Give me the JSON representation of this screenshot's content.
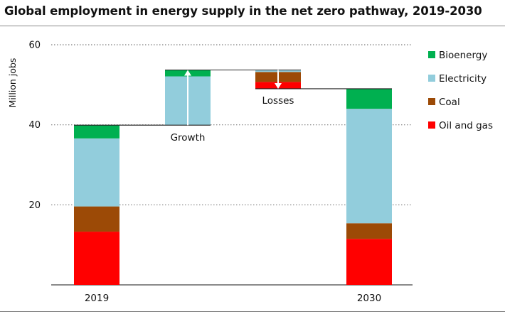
{
  "chart_data": {
    "type": "waterfall-stacked-bar",
    "title": "Global employment in energy supply in the net zero pathway, 2019-2030",
    "ylabel": "Million jobs",
    "ylim": [
      0,
      60
    ],
    "yticks": [
      20,
      40,
      60
    ],
    "grid": true,
    "legend_position": "right",
    "series_names": [
      "Oil and gas",
      "Coal",
      "Electricity",
      "Bioenergy"
    ],
    "colors": {
      "Oil and gas": "#ff0000",
      "Coal": "#9c4a06",
      "Electricity": "#92cddc",
      "Bioenergy": "#00b050"
    },
    "categories": [
      "2019",
      "Growth",
      "Losses",
      "2030"
    ],
    "bars": [
      {
        "category": "2019",
        "kind": "total",
        "segments": [
          {
            "series": "Oil and gas",
            "from": 0,
            "to": 13.3
          },
          {
            "series": "Coal",
            "from": 13.3,
            "to": 19.6
          },
          {
            "series": "Electricity",
            "from": 19.6,
            "to": 36.6
          },
          {
            "series": "Bioenergy",
            "from": 36.6,
            "to": 39.9
          }
        ]
      },
      {
        "category": "Growth",
        "kind": "increase",
        "segments": [
          {
            "series": "Electricity",
            "from": 39.9,
            "to": 52.1
          },
          {
            "series": "Bioenergy",
            "from": 52.1,
            "to": 53.7
          }
        ]
      },
      {
        "category": "Losses",
        "kind": "decrease",
        "segments": [
          {
            "series": "Oil and gas",
            "from": 49.0,
            "to": 50.7
          },
          {
            "series": "Coal",
            "from": 50.7,
            "to": 53.2
          },
          {
            "series": "Electricity",
            "from": 53.2,
            "to": 53.7
          }
        ]
      },
      {
        "category": "2030",
        "kind": "total",
        "segments": [
          {
            "series": "Oil and gas",
            "from": 0,
            "to": 11.5
          },
          {
            "series": "Coal",
            "from": 11.5,
            "to": 15.4
          },
          {
            "series": "Electricity",
            "from": 15.4,
            "to": 44.0
          },
          {
            "series": "Bioenergy",
            "from": 44.0,
            "to": 49.0
          }
        ]
      }
    ],
    "annotations": [
      {
        "text": "Growth",
        "near": "Growth",
        "arrow": "up",
        "from": 39.9,
        "to": 53.7
      },
      {
        "text": "Losses",
        "near": "Losses",
        "arrow": "down",
        "from": 53.7,
        "to": 49.0
      }
    ],
    "xtick_labels": [
      "2019",
      "2030"
    ]
  }
}
